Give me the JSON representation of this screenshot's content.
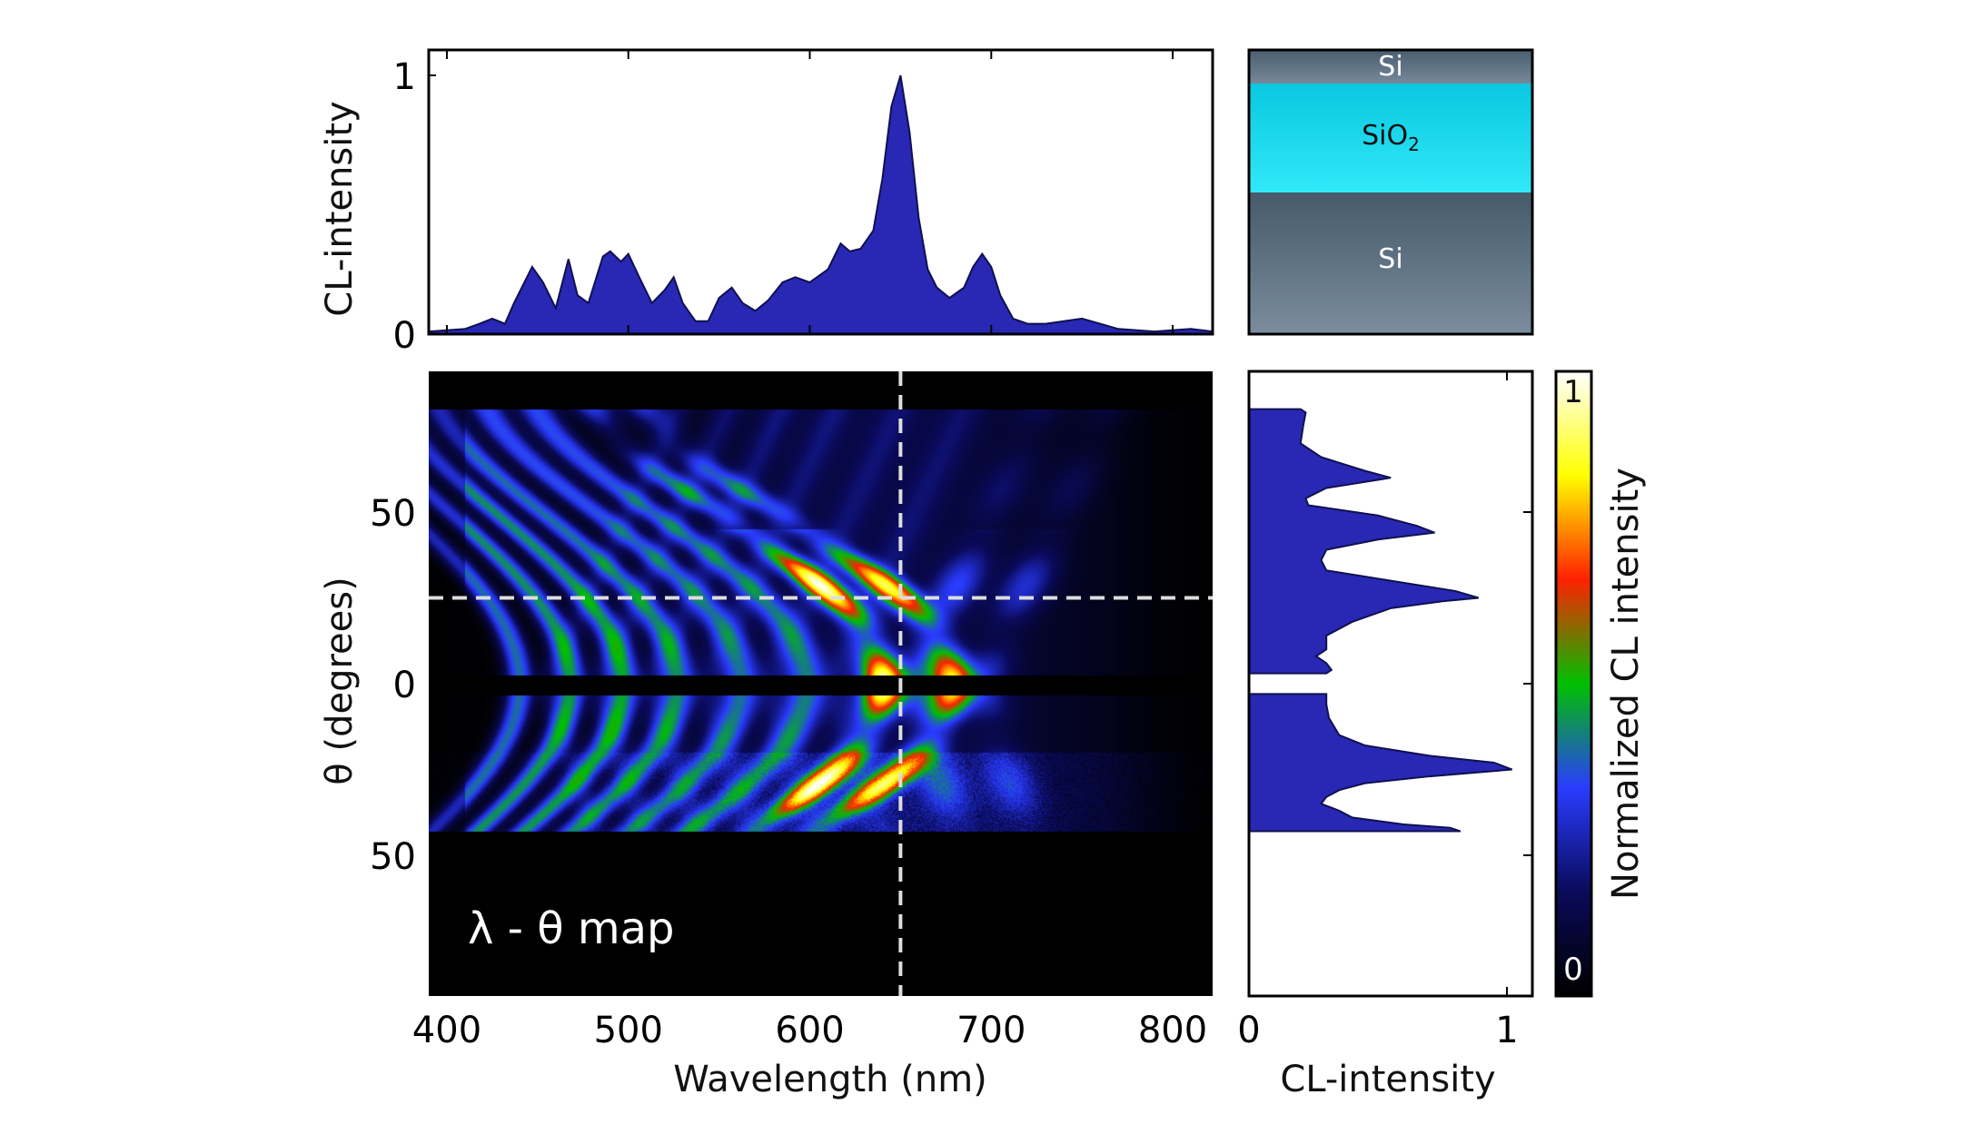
{
  "chart_data": [
    {
      "type": "area",
      "panel": "spectrum",
      "xlabel": "",
      "ylabel": "CL-intensity",
      "xlim": [
        390,
        822
      ],
      "ylim": [
        0,
        1.1
      ],
      "yticks": [
        "0",
        "1"
      ],
      "yticks_values": [
        0,
        1
      ],
      "xticks_values": [
        400,
        500,
        600,
        700,
        800
      ],
      "fill_color": "#2828b4",
      "x": [
        390,
        410,
        418,
        425,
        432,
        437,
        447,
        453,
        460,
        467,
        472,
        478,
        486,
        490,
        496,
        500,
        506,
        513,
        520,
        525,
        530,
        537,
        544,
        550,
        557,
        563,
        570,
        577,
        585,
        592,
        600,
        610,
        617,
        622,
        628,
        635,
        640,
        645,
        650,
        655,
        660,
        665,
        670,
        677,
        685,
        690,
        695,
        700,
        705,
        712,
        720,
        730,
        740,
        750,
        760,
        770,
        790,
        810,
        822
      ],
      "y": [
        0.01,
        0.02,
        0.04,
        0.06,
        0.04,
        0.12,
        0.26,
        0.2,
        0.1,
        0.29,
        0.15,
        0.12,
        0.3,
        0.32,
        0.28,
        0.31,
        0.22,
        0.12,
        0.17,
        0.22,
        0.12,
        0.05,
        0.05,
        0.14,
        0.18,
        0.12,
        0.09,
        0.13,
        0.2,
        0.22,
        0.2,
        0.25,
        0.35,
        0.32,
        0.33,
        0.4,
        0.6,
        0.88,
        1.0,
        0.78,
        0.45,
        0.25,
        0.18,
        0.14,
        0.18,
        0.26,
        0.31,
        0.26,
        0.15,
        0.06,
        0.04,
        0.04,
        0.05,
        0.06,
        0.04,
        0.02,
        0.01,
        0.02,
        0.01
      ]
    },
    {
      "type": "heatmap",
      "panel": "lambda-theta-map",
      "annotation": "λ - θ map",
      "xlabel": "Wavelength (nm)",
      "ylabel": "θ (degrees)",
      "xlim": [
        390,
        822
      ],
      "ylim": [
        -91,
        91
      ],
      "xticks": [
        "400",
        "500",
        "600",
        "700",
        "800"
      ],
      "xticks_values": [
        400,
        500,
        600,
        700,
        800
      ],
      "yticks": [
        "50",
        "0",
        "50"
      ],
      "yticks_values": [
        50,
        0,
        -50
      ],
      "crosshair": {
        "wavelength": 650,
        "theta": 25
      },
      "colormap": [
        "#000000",
        "#0a0a5a",
        "#2a3cff",
        "#00c000",
        "#ff2000",
        "#ffff00",
        "#ffffff"
      ]
    },
    {
      "type": "area",
      "panel": "angular-profile",
      "xlabel": "CL-intensity",
      "xticks": [
        "0",
        "1"
      ],
      "xticks_values": [
        0,
        1
      ],
      "xlim": [
        0,
        1.1
      ],
      "ylim": [
        -91,
        91
      ],
      "fill_color": "#2828b4",
      "segments": [
        {
          "theta": [
            80,
            79,
            75,
            70,
            66,
            62,
            60,
            57,
            54,
            52,
            49,
            46,
            44,
            42,
            39,
            36,
            33,
            30,
            27,
            25,
            24,
            22,
            18,
            14,
            10,
            8,
            6,
            4,
            3
          ],
          "intensity": [
            0.2,
            0.22,
            0.21,
            0.2,
            0.28,
            0.45,
            0.55,
            0.3,
            0.22,
            0.23,
            0.5,
            0.65,
            0.72,
            0.5,
            0.3,
            0.28,
            0.3,
            0.55,
            0.8,
            0.89,
            0.75,
            0.55,
            0.4,
            0.3,
            0.3,
            0.26,
            0.3,
            0.32,
            0.3
          ]
        },
        {
          "theta": [
            -3,
            -6,
            -10,
            -15,
            -18,
            -21,
            -23,
            -25,
            -27,
            -29,
            -31,
            -33,
            -35,
            -37,
            -39,
            -41,
            -42,
            -43
          ],
          "intensity": [
            0.3,
            0.3,
            0.31,
            0.35,
            0.45,
            0.7,
            0.95,
            1.02,
            0.7,
            0.45,
            0.35,
            0.3,
            0.28,
            0.35,
            0.4,
            0.6,
            0.78,
            0.82
          ]
        }
      ]
    }
  ],
  "structure": {
    "layers": [
      {
        "label": "Si",
        "color_top": "#4a5e70",
        "color_bottom": "#76889a"
      },
      {
        "label": "SiO",
        "subscript": "2",
        "color_top": "#0ac8e0",
        "color_bottom": "#30e8f8"
      },
      {
        "label": "Si",
        "color_top": "#465a6a",
        "color_bottom": "#7a8c9e"
      }
    ]
  },
  "colorbar": {
    "label": "Normalized CL intensity",
    "max_label": "1",
    "min_label": "0"
  }
}
